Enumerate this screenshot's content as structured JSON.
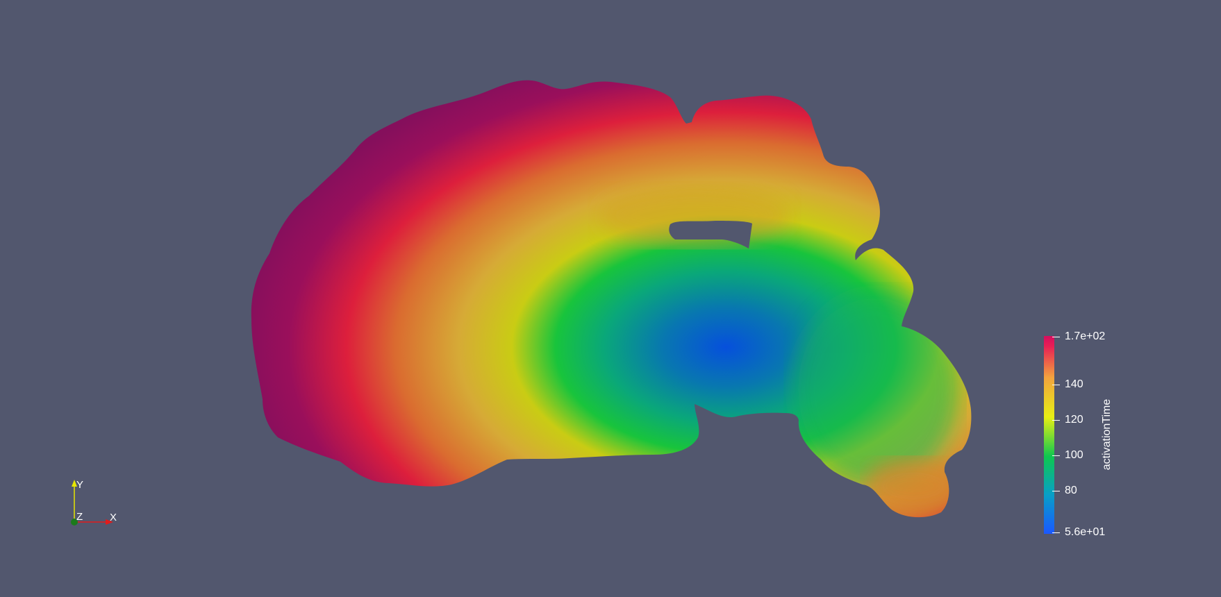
{
  "scene": {
    "background_color": "#52576e",
    "colormap_stops": [
      "#1a58ff",
      "#08a0c6",
      "#0ec750",
      "#e7ef14",
      "#f2a33e",
      "#e81e55",
      "#9c0e5a"
    ]
  },
  "legend": {
    "title": "activationTime",
    "max_label": "1.7e+02",
    "min_label": "5.6e+01",
    "tick_labels": [
      "140",
      "120",
      "100",
      "80"
    ]
  },
  "orientation_axes": {
    "x_label": "X",
    "y_label": "Y",
    "z_label": "Z",
    "x_color": "#e21b1b",
    "y_color": "#e6e600",
    "z_color": "#1b7a1b"
  }
}
